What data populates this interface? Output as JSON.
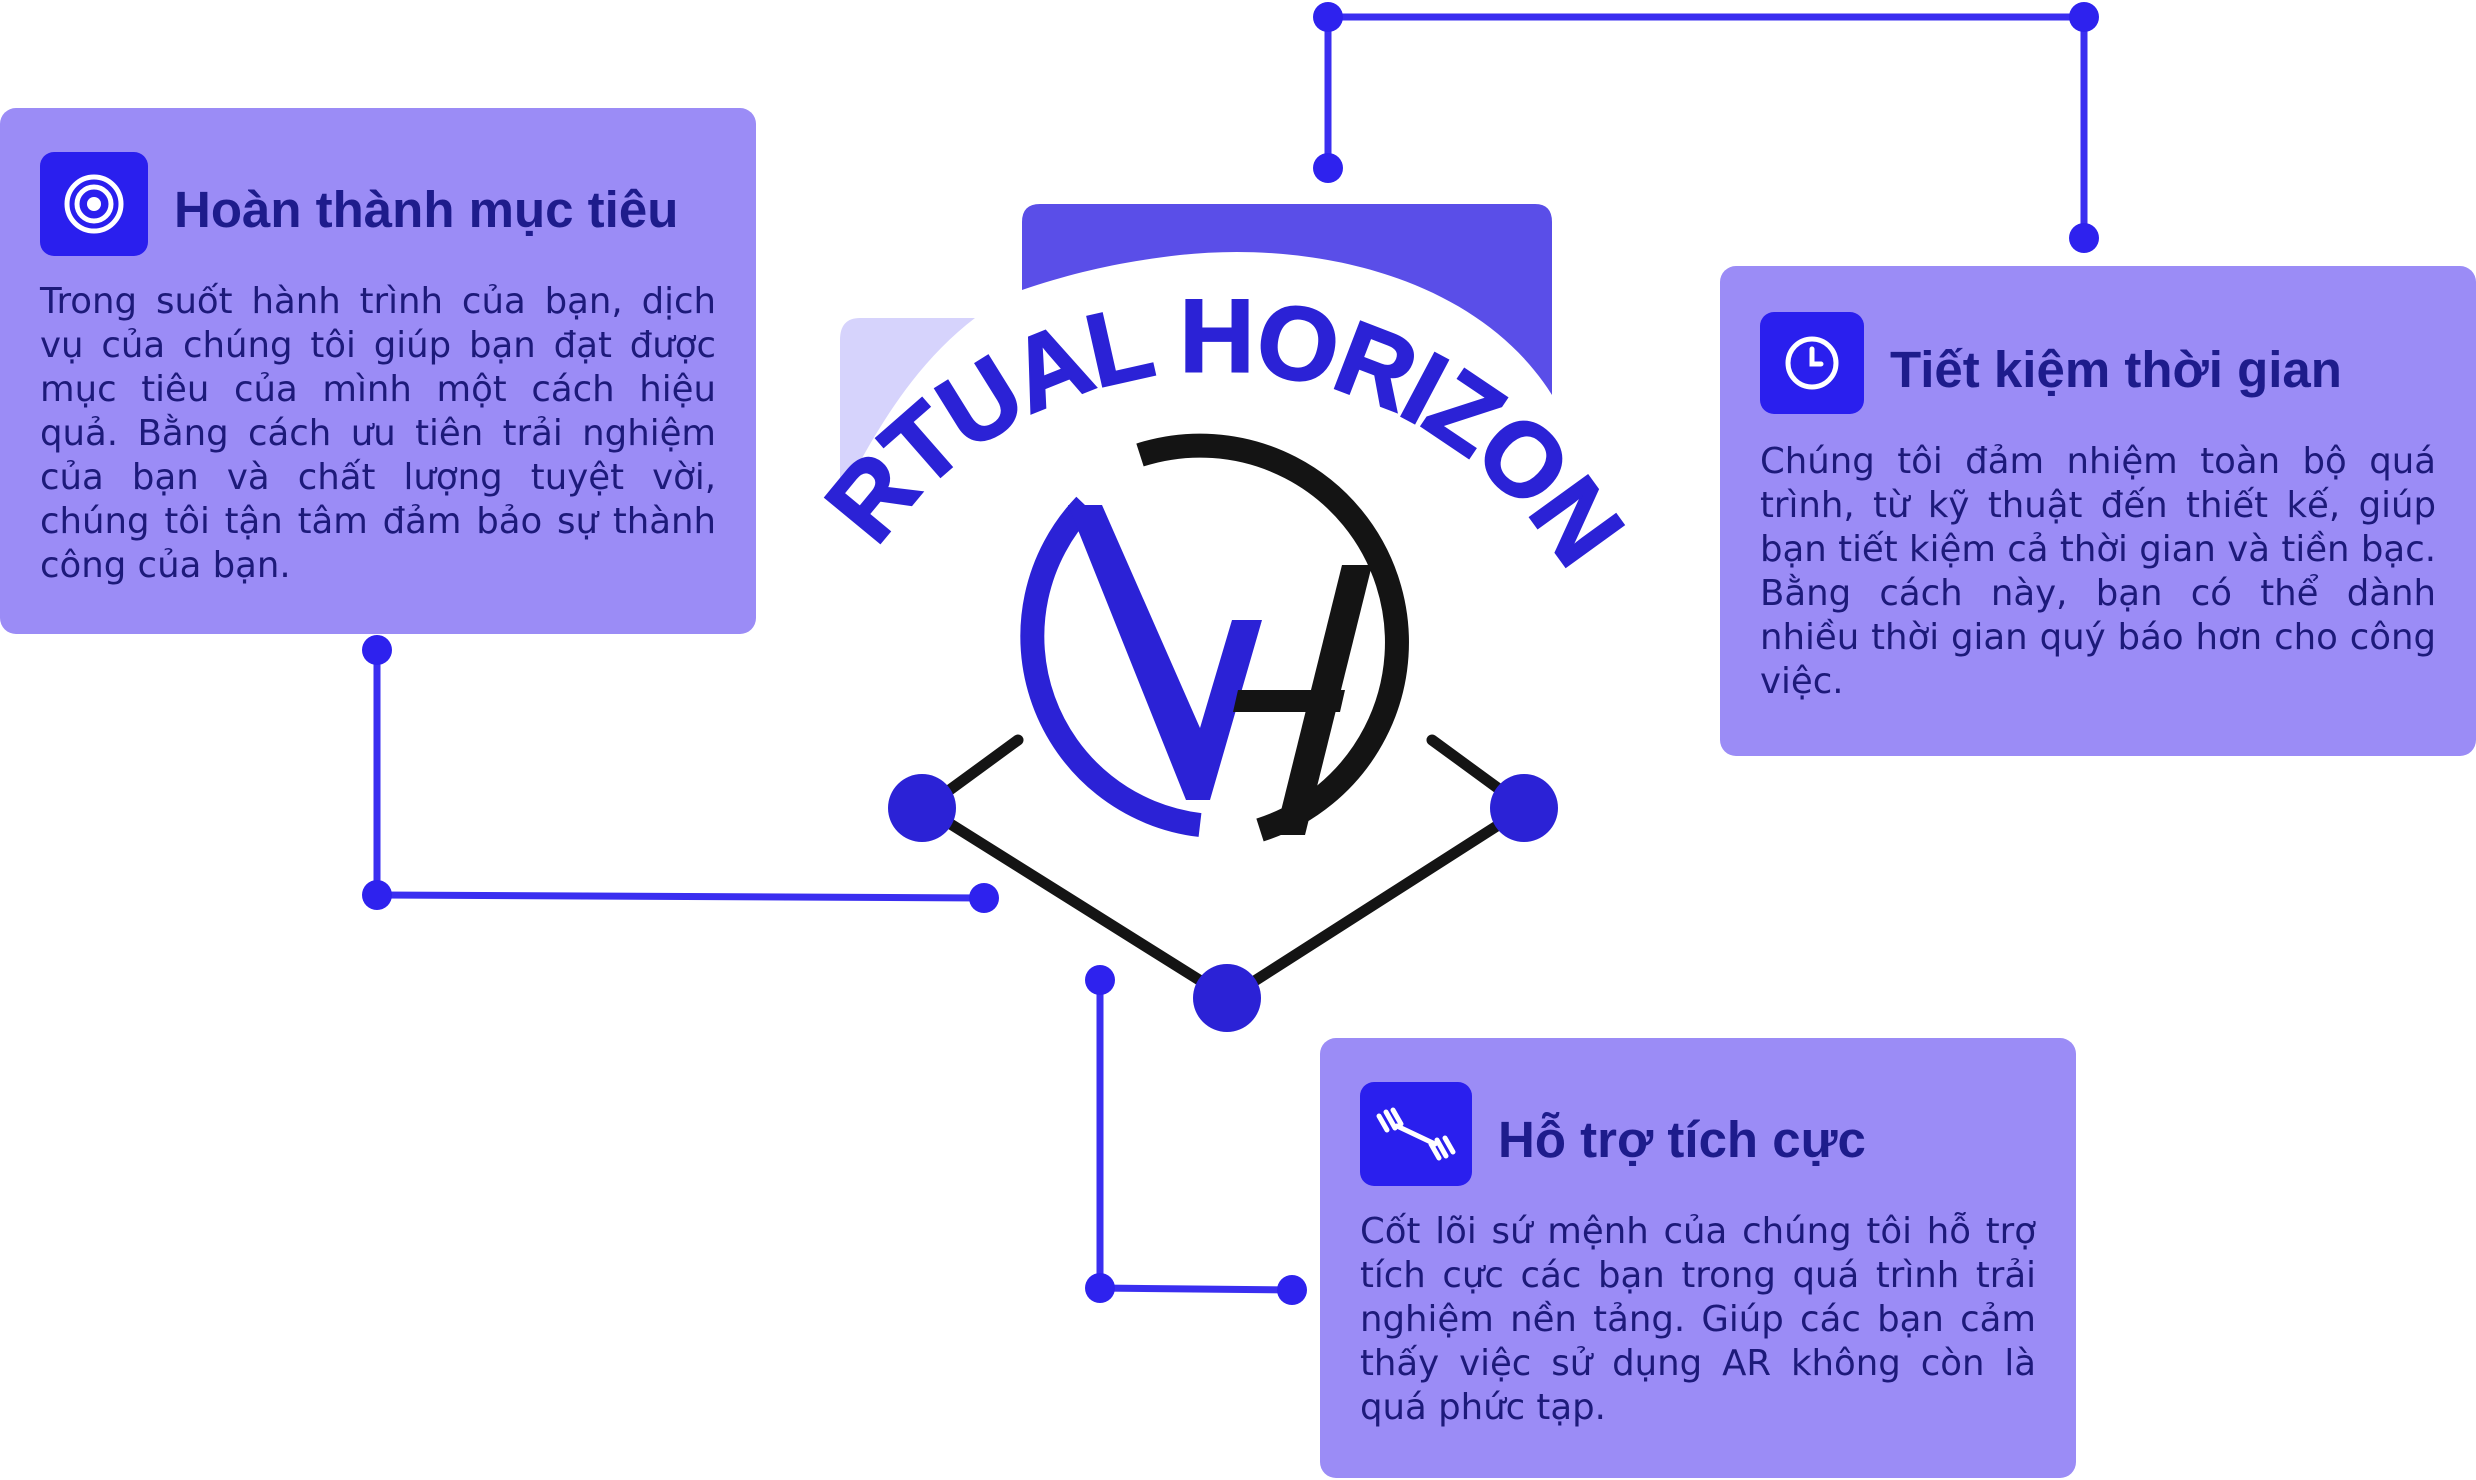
{
  "logo": {
    "wordmark": "VIRTUAL HORIZONS",
    "monogram": "VH",
    "colors": {
      "primary": "#2b22d6",
      "secondary": "#141414",
      "accent_shape": "#5a4ee8",
      "accent_light": "#d6d3fc"
    }
  },
  "colors": {
    "card_bg": "#9b8cf6",
    "icon_bg": "#2a1fee",
    "connector": "#3a2ef0",
    "title": "#1e1c8c",
    "text": "#1d1a7a"
  },
  "cards": [
    {
      "icon": "target-icon",
      "title": "Hoàn thành mục tiêu",
      "text": "Trong suốt hành trình của bạn, dịch vụ của chúng tôi giúp bạn đạt được mục tiêu của mình một cách hiệu quả. Bằng cách ưu tiên trải nghiệm của bạn và chất lượng tuyệt vời, chúng tôi tận tâm đảm bảo sự thành công của bạn."
    },
    {
      "icon": "clock-icon",
      "title": "Tiết kiệm thời gian",
      "text": "Chúng tôi đảm nhiệm toàn bộ quá trình, từ kỹ thuật đến thiết kế, giúp bạn tiết kiệm cả thời gian và tiền bạc. Bằng cách này, bạn có thể dành nhiều  thời gian quý báo hơn cho công việc."
    },
    {
      "icon": "dumbbell-icon",
      "title": "Hỗ trợ tích cực",
      "text": "Cốt lõi sứ mệnh của chúng tôi hỗ trợ tích cực các bạn trong quá trình trải nghiệm nền tảng. Giúp các bạn cảm thấy việc sử dụng AR không còn là quá phức tạp."
    }
  ]
}
